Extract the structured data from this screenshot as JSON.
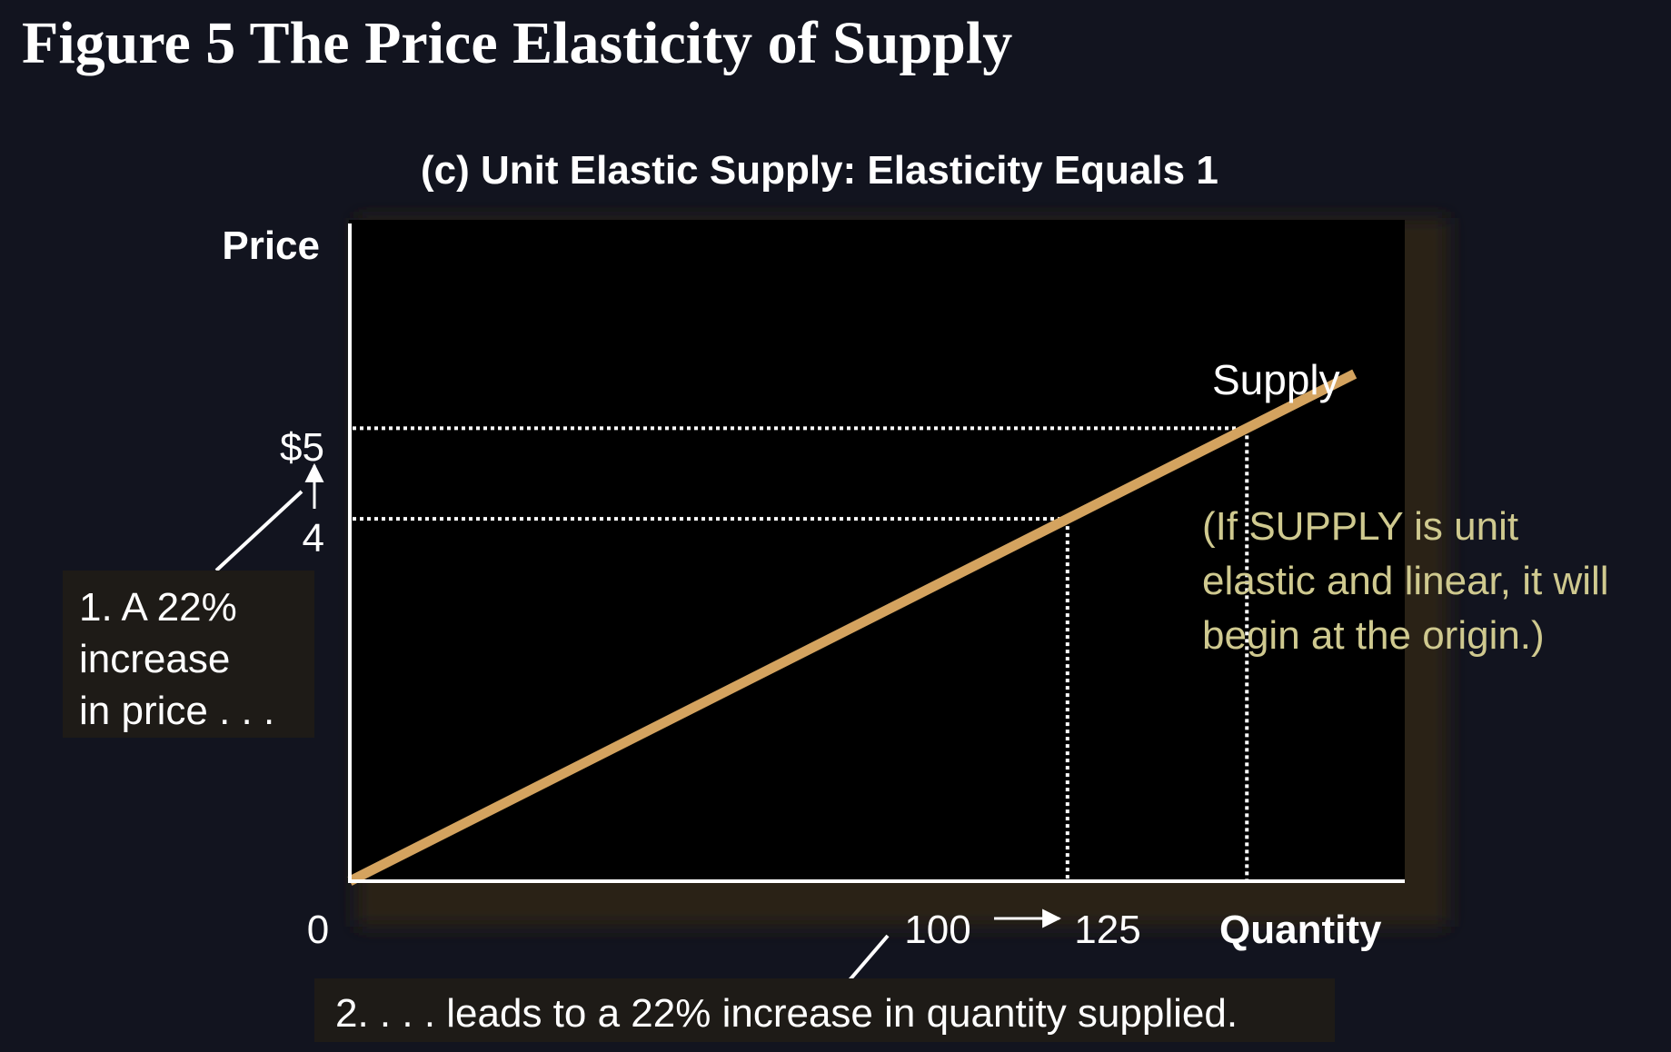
{
  "title": "Figure 5 The Price Elasticity of Supply",
  "colors": {
    "background": "#12141f",
    "plot_background": "#000000",
    "supply_line": "#d4a35f",
    "note_text": "#cfc98f",
    "callout_background": "#1e1b17"
  },
  "chart_data": {
    "type": "line",
    "title": "(c) Unit Elastic Supply: Elasticity Equals 1",
    "xlabel": "Quantity",
    "ylabel": "Price",
    "xlim": [
      0,
      147
    ],
    "ylim": [
      0,
      7.3
    ],
    "grid": false,
    "series": [
      {
        "name": "Supply",
        "x": [
          0,
          140
        ],
        "y": [
          0,
          5.6
        ]
      }
    ],
    "y_ticks": [
      {
        "value": 5,
        "label": "$5"
      },
      {
        "value": 4,
        "label": "4"
      }
    ],
    "x_ticks": [
      {
        "value": 100,
        "label": "100"
      },
      {
        "value": 125,
        "label": "125"
      }
    ],
    "origin_label": "0",
    "reference_points": [
      {
        "x": 100,
        "y": 4
      },
      {
        "x": 125,
        "y": 5
      }
    ],
    "annotations": {
      "price_callout": [
        "1. A 22%",
        "increase",
        "in price . . ."
      ],
      "quantity_callout": "2.  . . . leads to a 22% increase in quantity supplied.",
      "note": [
        "(If SUPPLY is unit",
        "elastic and linear, it will",
        "begin at the origin.)"
      ]
    }
  }
}
